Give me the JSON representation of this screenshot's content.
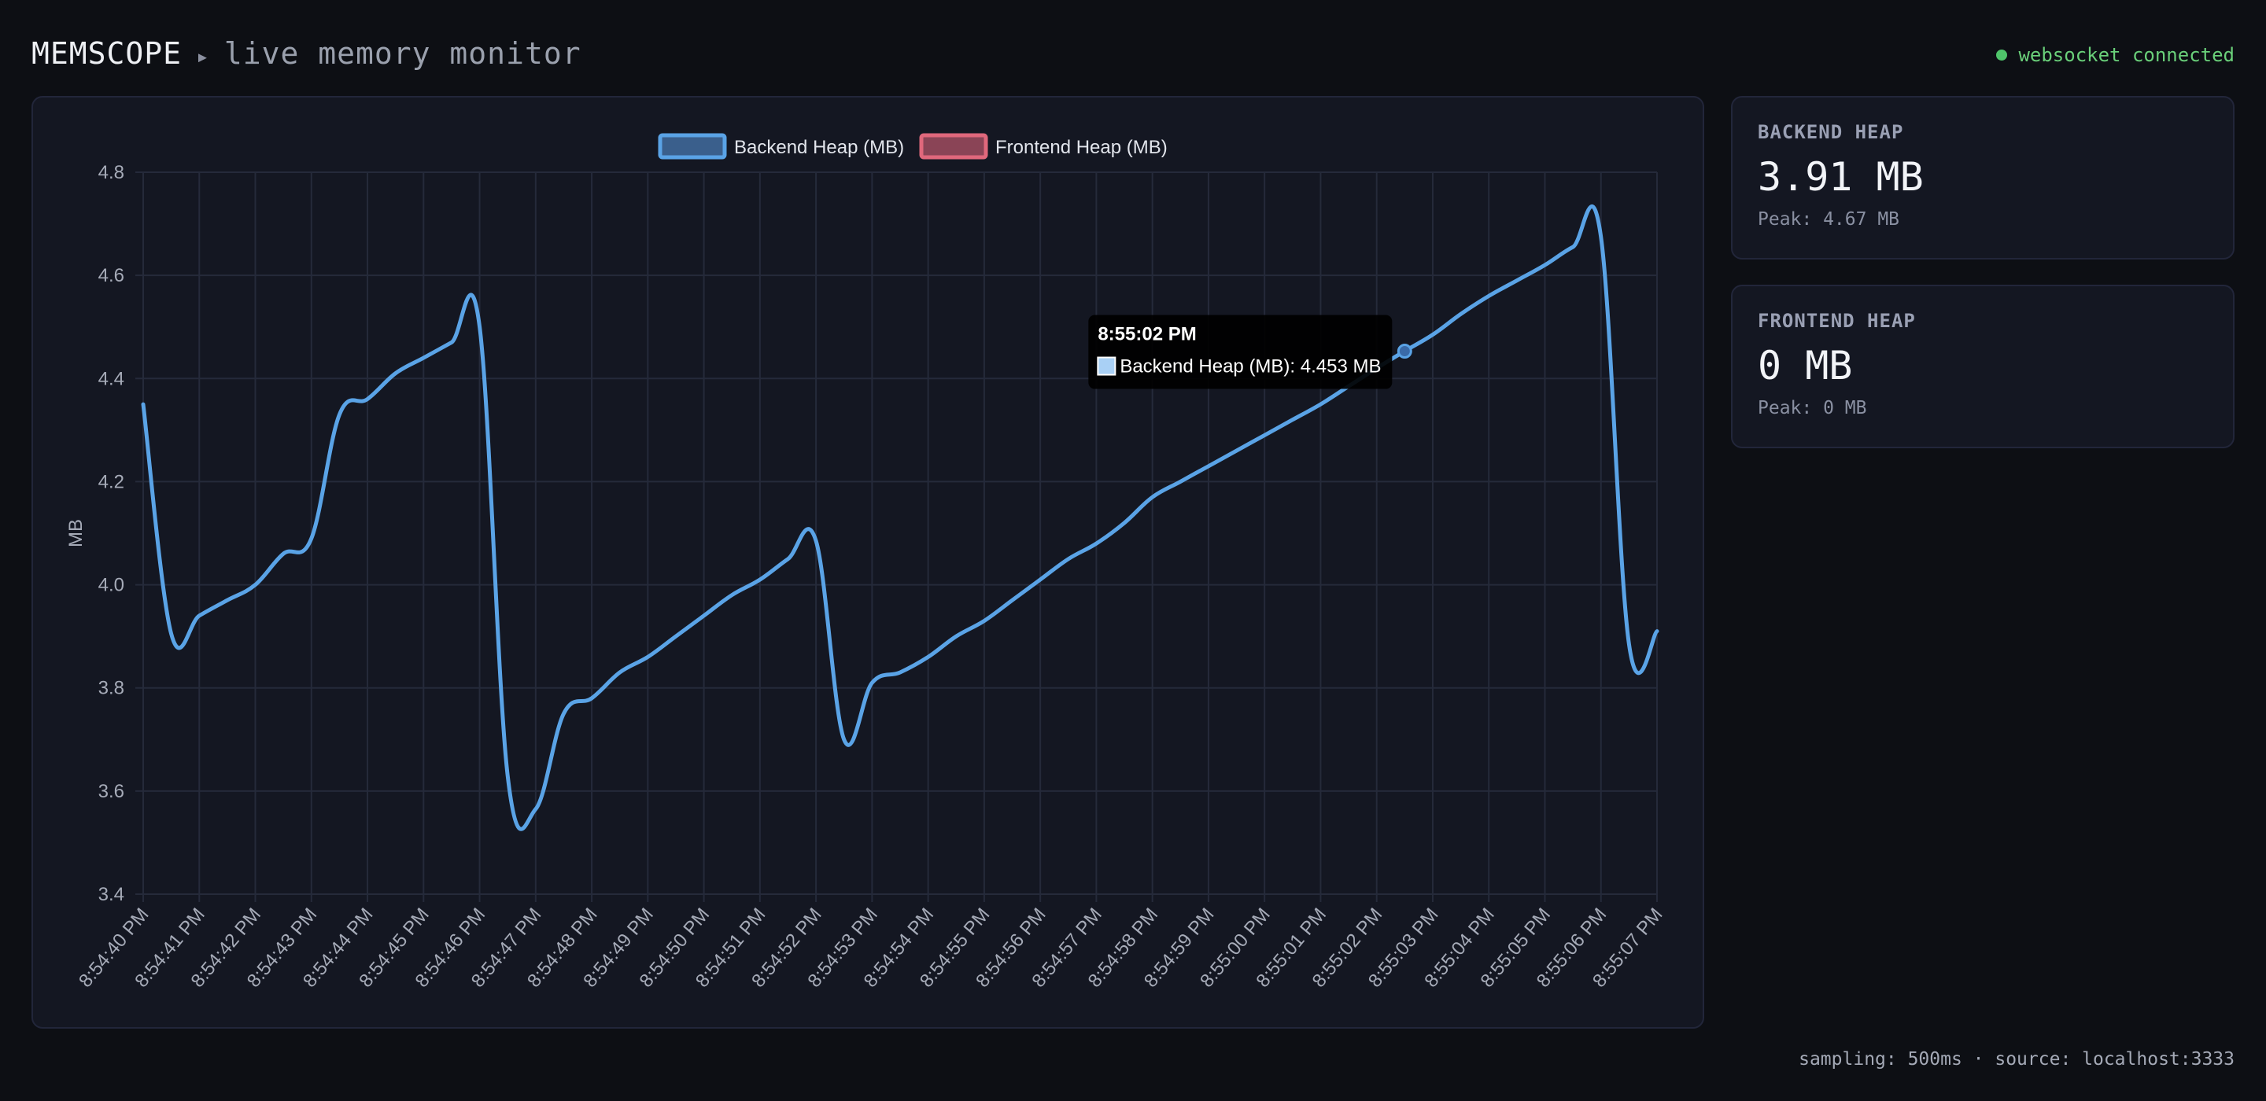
{
  "header": {
    "brand": "MEMSCOPE",
    "separator": "▸",
    "subtitle": "live memory monitor",
    "status": "websocket connected",
    "status_color": "#4fc46a"
  },
  "cards": [
    {
      "label": "BACKEND HEAP",
      "value": "3.91 MB",
      "peak": "Peak: 4.67 MB"
    },
    {
      "label": "FRONTEND HEAP",
      "value": "0 MB",
      "peak": "Peak: 0 MB"
    }
  ],
  "footer": {
    "text": "sampling: 500ms · source: localhost:3333"
  },
  "tooltip": {
    "title": "8:55:02 PM",
    "body": "Backend Heap (MB): 4.453 MB",
    "x_index": 22.5,
    "value": 4.453
  },
  "chart_data": {
    "type": "line",
    "ylabel": "MB",
    "xlabel": "",
    "ylim": [
      3.4,
      4.8
    ],
    "yticks": [
      3.4,
      3.6,
      3.8,
      4.0,
      4.2,
      4.4,
      4.6,
      4.8
    ],
    "grid": true,
    "legend_position": "top-center",
    "categories": [
      "8:54:40 PM",
      "8:54:41 PM",
      "8:54:42 PM",
      "8:54:43 PM",
      "8:54:44 PM",
      "8:54:45 PM",
      "8:54:46 PM",
      "8:54:47 PM",
      "8:54:48 PM",
      "8:54:49 PM",
      "8:54:50 PM",
      "8:54:51 PM",
      "8:54:52 PM",
      "8:54:53 PM",
      "8:54:54 PM",
      "8:54:55 PM",
      "8:54:56 PM",
      "8:54:57 PM",
      "8:54:58 PM",
      "8:54:59 PM",
      "8:55:00 PM",
      "8:55:01 PM",
      "8:55:02 PM",
      "8:55:03 PM",
      "8:55:04 PM",
      "8:55:05 PM",
      "8:55:06 PM",
      "8:55:07 PM"
    ],
    "series": [
      {
        "name": "Backend Heap (MB)",
        "color": "#5aa3e6",
        "fill": "#3a5f8c",
        "points": [
          [
            0,
            4.35
          ],
          [
            0.5,
            3.905
          ],
          [
            1,
            3.94
          ],
          [
            1.5,
            3.97
          ],
          [
            2,
            4.0
          ],
          [
            2.5,
            4.06
          ],
          [
            3,
            4.09
          ],
          [
            3.5,
            4.33
          ],
          [
            4,
            4.36
          ],
          [
            4.5,
            4.41
          ],
          [
            5,
            4.44
          ],
          [
            5.5,
            4.47
          ],
          [
            6,
            4.5
          ],
          [
            6.5,
            3.63
          ],
          [
            7,
            3.565
          ],
          [
            7.5,
            3.75
          ],
          [
            8,
            3.78
          ],
          [
            8.5,
            3.83
          ],
          [
            9,
            3.86
          ],
          [
            9.5,
            3.9
          ],
          [
            10,
            3.94
          ],
          [
            10.5,
            3.98
          ],
          [
            11,
            4.01
          ],
          [
            11.5,
            4.05
          ],
          [
            12,
            4.085
          ],
          [
            12.5,
            3.7
          ],
          [
            13,
            3.81
          ],
          [
            13.5,
            3.83
          ],
          [
            14,
            3.86
          ],
          [
            14.5,
            3.9
          ],
          [
            15,
            3.93
          ],
          [
            15.5,
            3.97
          ],
          [
            16,
            4.01
          ],
          [
            16.5,
            4.05
          ],
          [
            17,
            4.08
          ],
          [
            17.5,
            4.12
          ],
          [
            18,
            4.17
          ],
          [
            18.5,
            4.2
          ],
          [
            19,
            4.23
          ],
          [
            19.5,
            4.26
          ],
          [
            20,
            4.29
          ],
          [
            20.5,
            4.32
          ],
          [
            21,
            4.35
          ],
          [
            21.5,
            4.385
          ],
          [
            22,
            4.42
          ],
          [
            22.5,
            4.453
          ],
          [
            23,
            4.485
          ],
          [
            23.5,
            4.525
          ],
          [
            24,
            4.56
          ],
          [
            24.5,
            4.59
          ],
          [
            25,
            4.62
          ],
          [
            25.5,
            4.655
          ],
          [
            26,
            4.675
          ],
          [
            26.5,
            3.885
          ],
          [
            27,
            3.91
          ]
        ]
      },
      {
        "name": "Frontend Heap (MB)",
        "color": "#e0687c",
        "fill": "#8a4456",
        "points": []
      }
    ]
  }
}
